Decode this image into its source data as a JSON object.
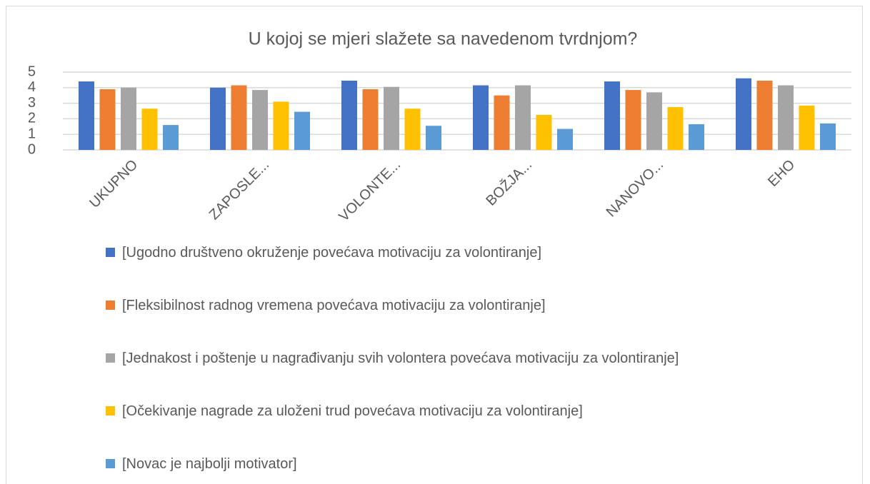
{
  "chart_data": {
    "type": "bar",
    "title": "U kojoj se mjeri slažete sa navedenom tvrdnjom?",
    "categories": [
      "UKUPNO",
      "ZAPOSLE...",
      "VOLONTE...",
      "BOŽJA...",
      "NANOVO...",
      "EHO"
    ],
    "series": [
      {
        "name": "[Ugodno društveno okruženje povećava motivaciju za volontiranje]",
        "color": "#4472c4",
        "values": [
          4.4,
          4.0,
          4.45,
          4.15,
          4.4,
          4.6
        ]
      },
      {
        "name": "[Fleksibilnost radnog vremena povećava motivaciju za volontiranje]",
        "color": "#ed7d31",
        "values": [
          3.9,
          4.15,
          3.9,
          3.5,
          3.85,
          4.45
        ]
      },
      {
        "name": "[Jednakost i poštenje u nagrađivanju svih volontera povećava motivaciju za volontiranje]",
        "color": "#a5a5a5",
        "values": [
          4.0,
          3.85,
          4.05,
          4.15,
          3.7,
          4.15
        ]
      },
      {
        "name": "[Očekivanje nagrade za uloženi trud povećava motivaciju za volontiranje]",
        "color": "#ffc000",
        "values": [
          2.65,
          3.1,
          2.65,
          2.25,
          2.75,
          2.85
        ]
      },
      {
        "name": "[Novac je najbolji motivator]",
        "color": "#5b9bd5",
        "values": [
          1.6,
          2.45,
          1.55,
          1.35,
          1.65,
          1.7
        ]
      }
    ],
    "ylim": [
      0,
      5
    ],
    "yticks": [
      0,
      1,
      2,
      3,
      4,
      5
    ],
    "grid": true,
    "legend": "bottom"
  }
}
